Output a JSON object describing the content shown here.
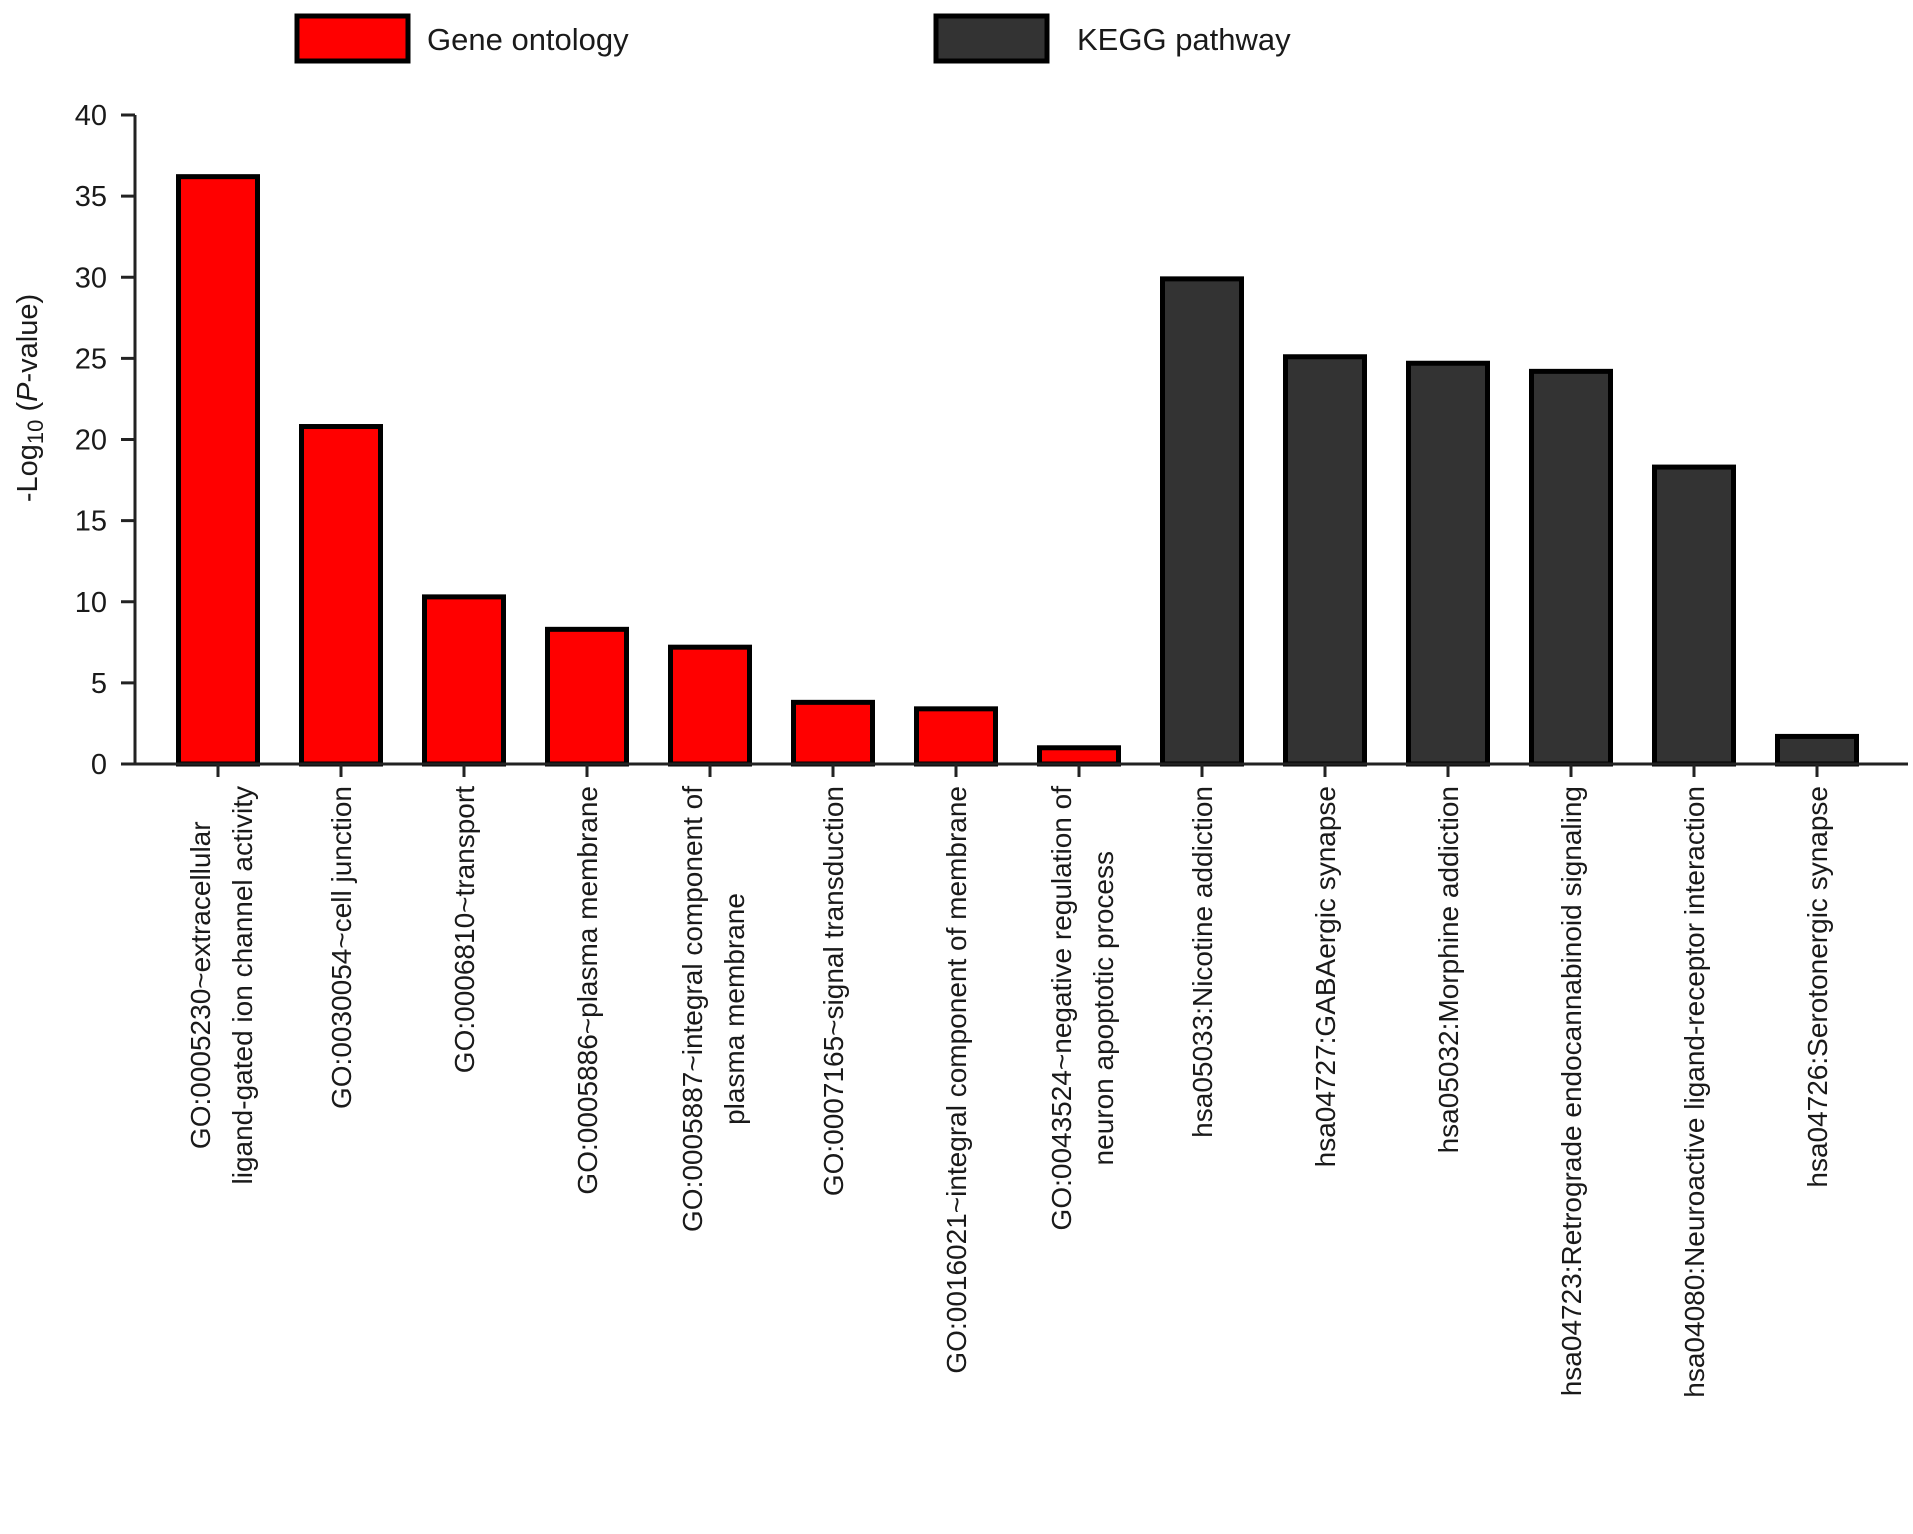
{
  "chart_data": {
    "type": "bar",
    "title": "",
    "xlabel": "",
    "ylabel": {
      "prefix": "-Log",
      "subscript": "10",
      "open": " (",
      "italic": "P",
      "suffix": "-value)"
    },
    "ylim": [
      0,
      40
    ],
    "yticks": [
      "0",
      "5",
      "10",
      "15",
      "20",
      "25",
      "30",
      "35",
      "40"
    ],
    "grid": false,
    "legend_placement": "top",
    "legend": [
      {
        "name": "Gene ontology",
        "color": "#ff0000"
      },
      {
        "name": "KEGG pathway",
        "color": "#333333"
      }
    ],
    "bars": [
      {
        "lines": [
          "GO:0005230~extracellular",
          "ligand-gated ion channel activity"
        ],
        "value": 36.2,
        "group": 0
      },
      {
        "lines": [
          "GO:0030054~cell junction"
        ],
        "value": 20.8,
        "group": 0
      },
      {
        "lines": [
          "GO:0006810~transport"
        ],
        "value": 10.3,
        "group": 0
      },
      {
        "lines": [
          "GO:0005886~plasma membrane"
        ],
        "value": 8.3,
        "group": 0
      },
      {
        "lines": [
          "GO:0005887~integral component of",
          "plasma membrane"
        ],
        "value": 7.2,
        "group": 0
      },
      {
        "lines": [
          "GO:0007165~signal transduction"
        ],
        "value": 3.8,
        "group": 0
      },
      {
        "lines": [
          "GO:0016021~integral component of membrane"
        ],
        "value": 3.4,
        "group": 0
      },
      {
        "lines": [
          "GO:0043524~negative regulation of",
          "neuron apoptotic process"
        ],
        "value": 1.0,
        "group": 0
      },
      {
        "lines": [
          "hsa05033:Nicotine addiction"
        ],
        "value": 29.9,
        "group": 1
      },
      {
        "lines": [
          "hsa04727:GABAergic synapse"
        ],
        "value": 25.1,
        "group": 1
      },
      {
        "lines": [
          "hsa05032:Morphine addiction"
        ],
        "value": 24.7,
        "group": 1
      },
      {
        "lines": [
          "hsa04723:Retrograde endocannabinoid signaling"
        ],
        "value": 24.2,
        "group": 1
      },
      {
        "lines": [
          "hsa04080:Neuroactive ligand-receptor interaction"
        ],
        "value": 18.3,
        "group": 1
      },
      {
        "lines": [
          "hsa04726:Serotonergic synapse"
        ],
        "value": 1.7,
        "group": 1
      }
    ]
  }
}
